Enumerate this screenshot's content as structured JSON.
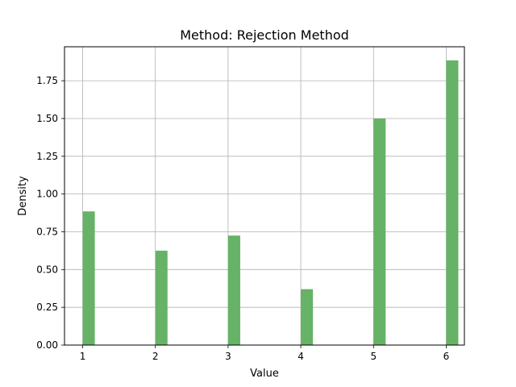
{
  "chart_data": {
    "type": "bar",
    "title": "Method: Rejection Method",
    "xlabel": "Value",
    "ylabel": "Density",
    "categories": [
      1,
      2,
      3,
      4,
      5,
      6
    ],
    "values": [
      0.885,
      0.625,
      0.725,
      0.37,
      1.5,
      1.885
    ],
    "xlim": [
      0.75,
      6.25
    ],
    "ylim": [
      0,
      1.975
    ],
    "xticks": [
      "1",
      "2",
      "3",
      "4",
      "5",
      "6"
    ],
    "yticks": [
      "0.00",
      "0.25",
      "0.50",
      "0.75",
      "1.00",
      "1.25",
      "1.50",
      "1.75"
    ],
    "grid": true,
    "bar_color": "#66b266",
    "grid_color": "#b0b0b0"
  }
}
